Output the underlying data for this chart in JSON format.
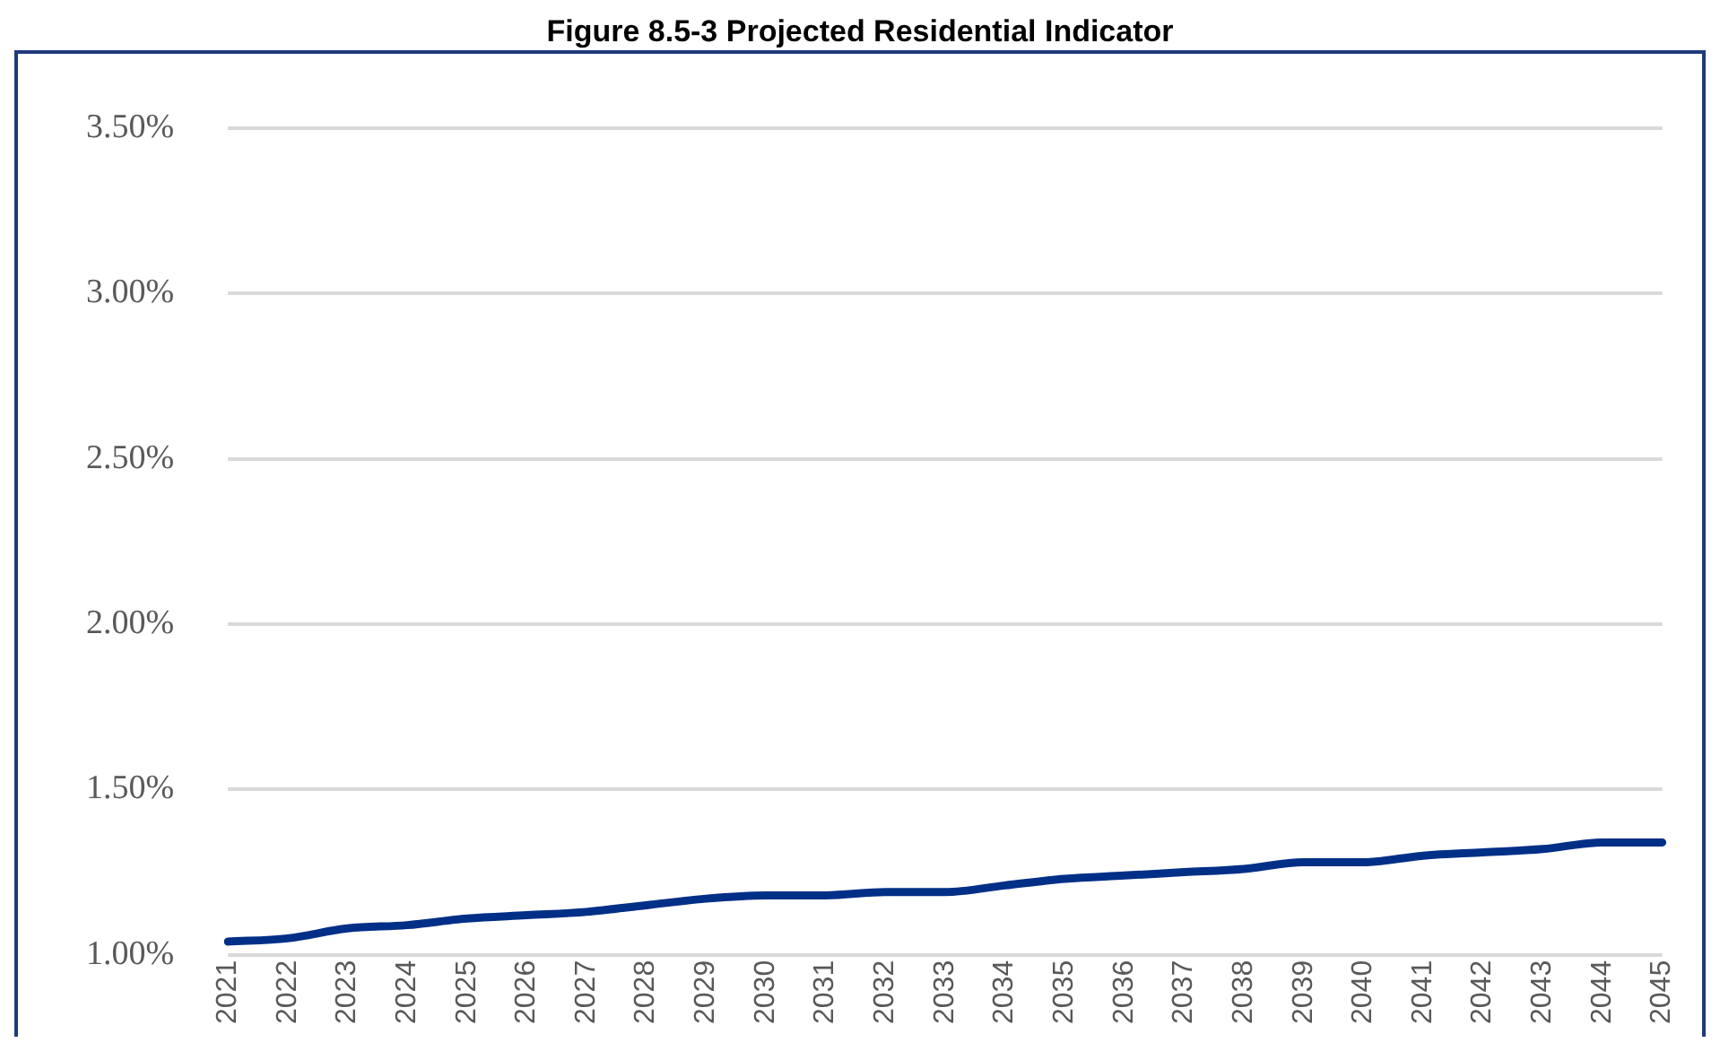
{
  "chart_data": {
    "type": "line",
    "title": "Figure 8.5-3 Projected Residential Indicator",
    "categories": [
      "2021",
      "2022",
      "2023",
      "2024",
      "2025",
      "2026",
      "2027",
      "2028",
      "2029",
      "2030",
      "2031",
      "2032",
      "2033",
      "2034",
      "2035",
      "2036",
      "2037",
      "2038",
      "2039",
      "2040",
      "2041",
      "2042",
      "2043",
      "2044",
      "2045"
    ],
    "series": [
      {
        "color": "#002f87",
        "values": [
          1.04,
          1.05,
          1.08,
          1.09,
          1.11,
          1.12,
          1.13,
          1.15,
          1.17,
          1.18,
          1.18,
          1.19,
          1.19,
          1.21,
          1.23,
          1.24,
          1.25,
          1.26,
          1.28,
          1.28,
          1.3,
          1.31,
          1.32,
          1.34,
          1.34
        ]
      }
    ],
    "ylim": [
      1,
      3.5
    ],
    "yticks": [
      {
        "value": 1,
        "label": "1.00%"
      },
      {
        "value": 1.5,
        "label": "1.50%"
      },
      {
        "value": 2,
        "label": "2.00%"
      },
      {
        "value": 2.5,
        "label": "2.50%"
      },
      {
        "value": 3,
        "label": "3.00%"
      },
      {
        "value": 3.5,
        "label": "3.50%"
      }
    ],
    "grid": "y",
    "legend": false,
    "marker": "none",
    "line_style": "solid"
  }
}
